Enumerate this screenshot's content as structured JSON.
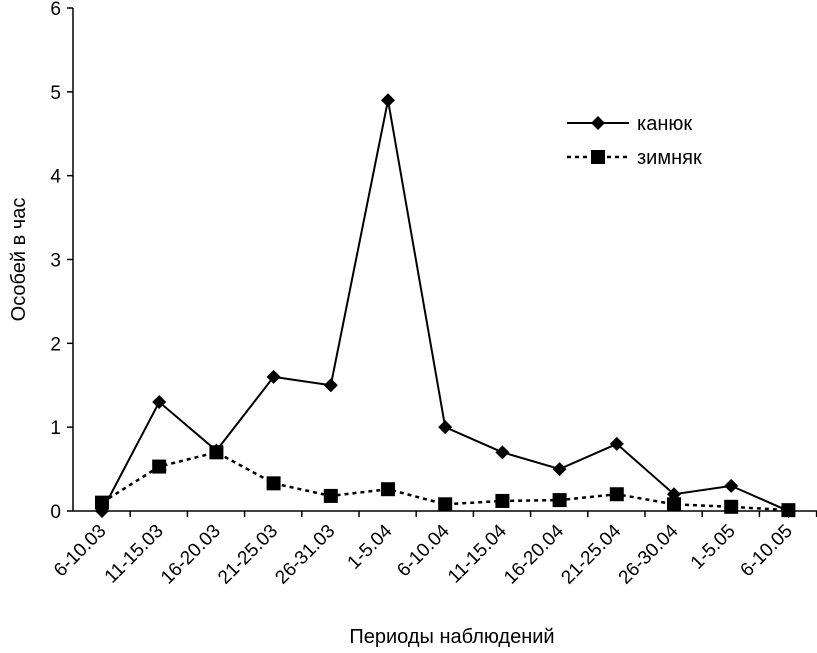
{
  "chart_data": {
    "type": "line",
    "xlabel": "Периоды наблюдений",
    "ylabel": "Особей в час",
    "ylim": [
      0,
      6
    ],
    "yticks": [
      "0",
      "1",
      "2",
      "3",
      "4",
      "5",
      "6"
    ],
    "categories": [
      "6-10.03",
      "11-15.03",
      "16-20.03",
      "21-25.03",
      "26-31.03",
      "1-5.04",
      "6-10.04",
      "11-15.04",
      "16-20.04",
      "21-25.04",
      "26-30.04",
      "1-5.05",
      "6-10.05"
    ],
    "grid": false,
    "legend_position": "top-right",
    "series": [
      {
        "name": "канюк",
        "line_style": "solid",
        "marker": "diamond",
        "color": "#000000",
        "values": [
          0.0,
          1.3,
          0.72,
          1.6,
          1.5,
          4.9,
          1.0,
          0.7,
          0.5,
          0.8,
          0.2,
          0.3,
          0.0
        ]
      },
      {
        "name": "зимняк",
        "line_style": "dashed",
        "marker": "square",
        "color": "#000000",
        "values": [
          0.1,
          0.53,
          0.7,
          0.33,
          0.18,
          0.26,
          0.08,
          0.12,
          0.13,
          0.2,
          0.08,
          0.05,
          0.01
        ]
      }
    ]
  }
}
